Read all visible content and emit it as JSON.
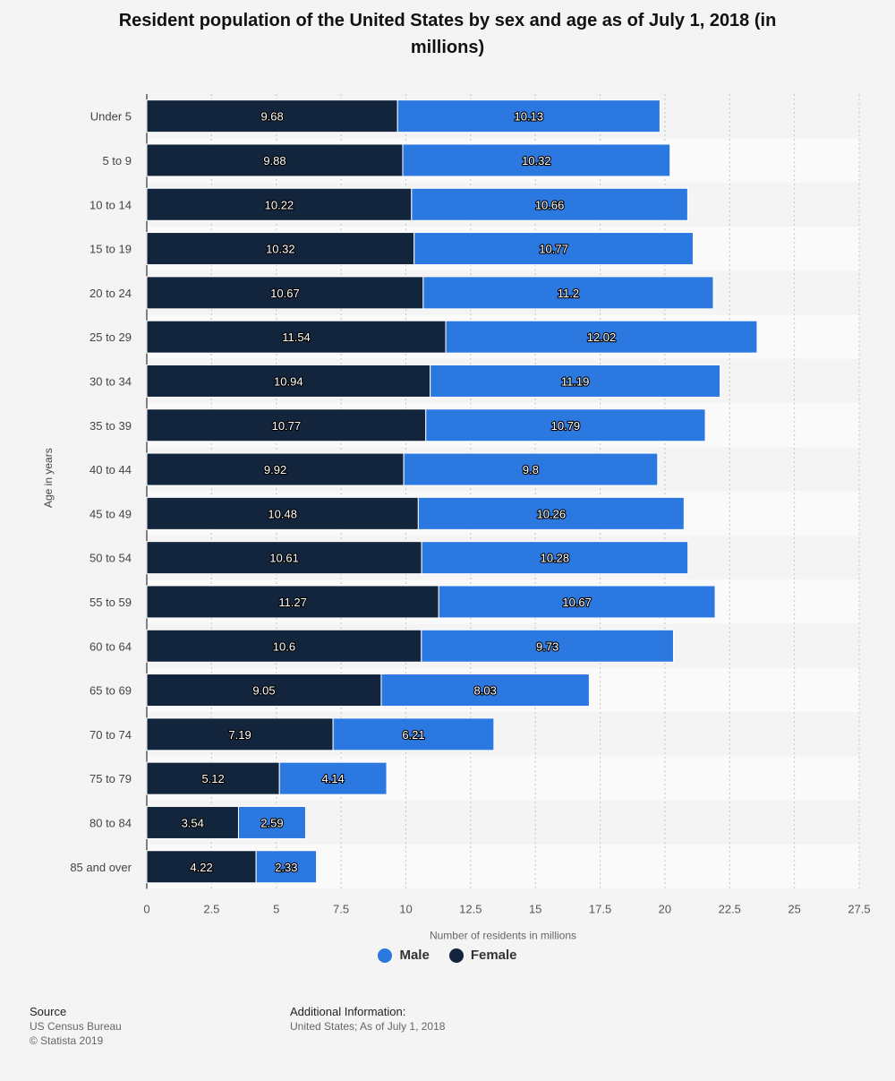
{
  "chart_data": {
    "type": "bar",
    "orientation": "horizontal",
    "stacked": true,
    "title": "Resident population of the United States by sex and age as of July 1, 2018 (in millions)",
    "xlabel": "Number of residents in millions",
    "ylabel": "Age in years",
    "xlim": [
      0,
      27.5
    ],
    "xticks": [
      "0",
      "2.5",
      "5",
      "7.5",
      "10",
      "12.5",
      "15",
      "17.5",
      "20",
      "22.5",
      "25",
      "27.5"
    ],
    "grid": true,
    "legend_position": "bottom",
    "categories": [
      "Under 5",
      "5 to 9",
      "10 to 14",
      "15 to 19",
      "20 to 24",
      "25 to 29",
      "30 to 34",
      "35 to 39",
      "40 to 44",
      "45 to 49",
      "50 to 54",
      "55 to 59",
      "60 to 64",
      "65 to 69",
      "70 to 74",
      "75 to 79",
      "80 to 84",
      "85 and over"
    ],
    "series": [
      {
        "name": "Female",
        "color": "#13253d",
        "values": [
          9.68,
          9.88,
          10.22,
          10.32,
          10.67,
          11.54,
          10.94,
          10.77,
          9.92,
          10.48,
          10.61,
          11.27,
          10.6,
          9.05,
          7.19,
          5.12,
          3.54,
          4.22
        ]
      },
      {
        "name": "Male",
        "color": "#2b78e0",
        "values": [
          10.13,
          10.32,
          10.66,
          10.77,
          11.2,
          12.02,
          11.19,
          10.79,
          9.8,
          10.26,
          10.28,
          10.67,
          9.73,
          8.03,
          6.21,
          4.14,
          2.59,
          2.33
        ]
      }
    ]
  },
  "legend": {
    "male_label": "Male",
    "female_label": "Female",
    "male_color": "#2b78e0",
    "female_color": "#13253d"
  },
  "footer": {
    "source_heading": "Source",
    "source_name": "US Census Bureau",
    "copyright": "© Statista 2019",
    "additional_heading": "Additional Information:",
    "additional_text": "United States; As of July 1, 2018"
  }
}
